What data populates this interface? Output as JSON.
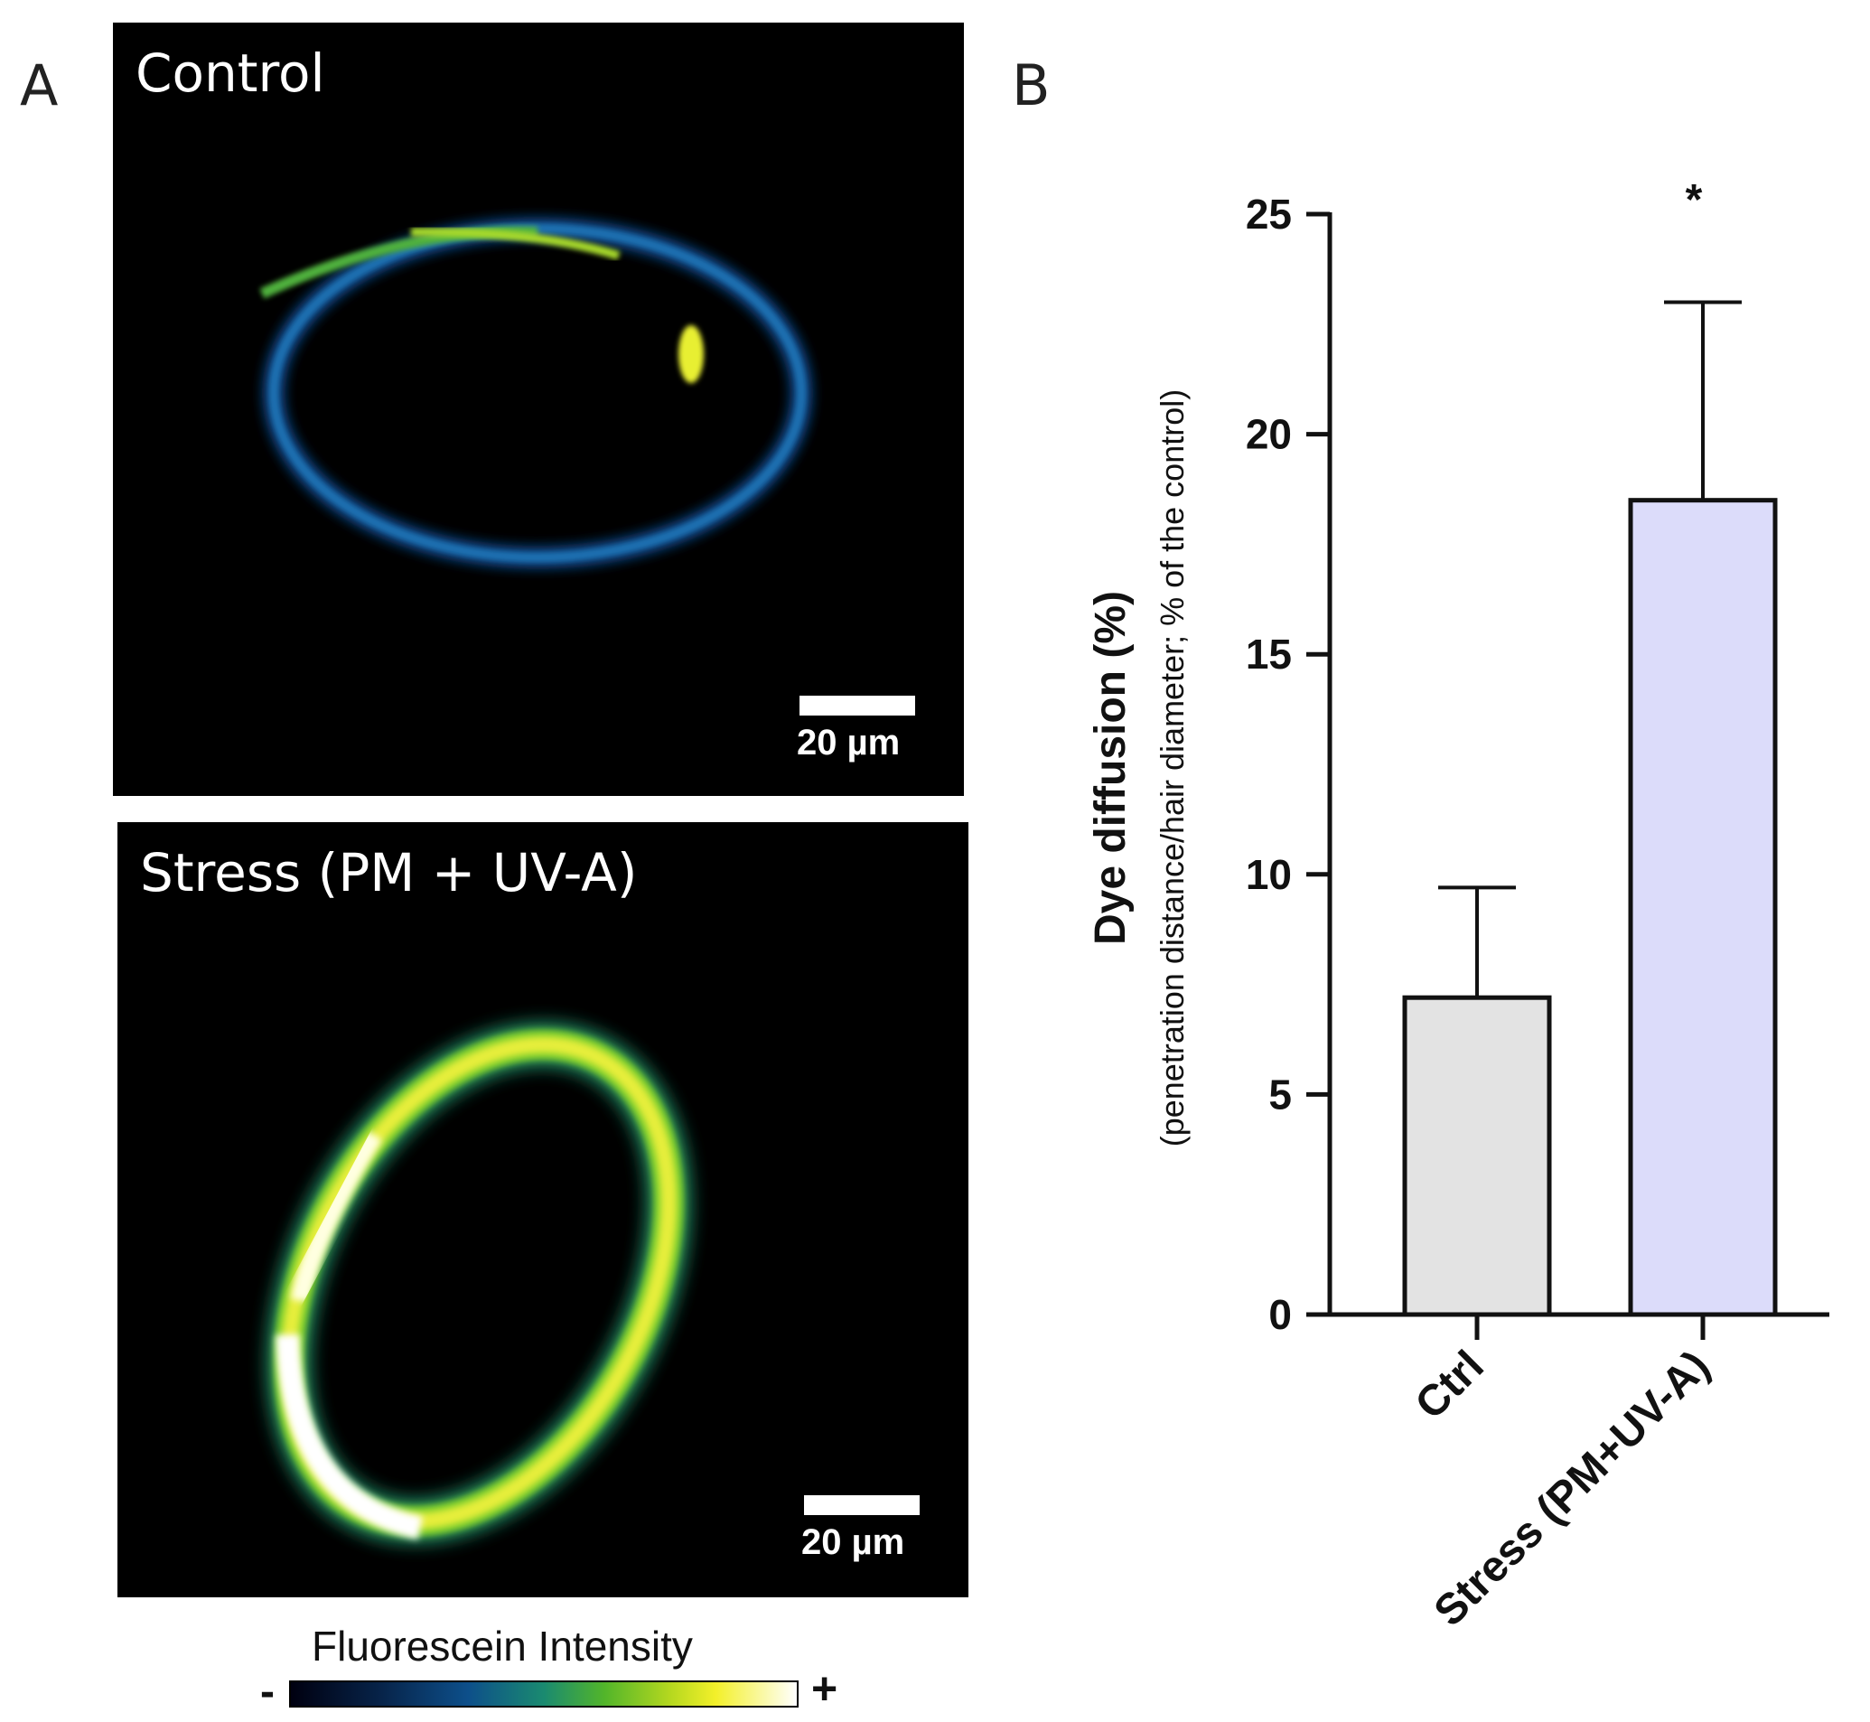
{
  "panel_a": {
    "letter": "A",
    "colorbar": {
      "title": "Fluorescein Intensity",
      "low": "-",
      "high": "+"
    },
    "images": [
      {
        "title": "Control",
        "scale_label": "20 µm"
      },
      {
        "title": "Stress (PM + UV-A)",
        "scale_label": "20 µm"
      }
    ]
  },
  "panel_b": {
    "letter": "B"
  },
  "colors": {
    "ctrl_bar": "#e3e3e3",
    "stress_bar": "#dcdcfa",
    "axis": "#111111"
  },
  "chart_data": {
    "type": "bar",
    "categories": [
      "Ctrl",
      "Stress (PM+UV-A)"
    ],
    "values": [
      7.2,
      18.5
    ],
    "error_bars": [
      2.5,
      4.5
    ],
    "significance": [
      "",
      "*"
    ],
    "ylabel": "Dye diffusion (%)",
    "ylabel_sub": "(penetration distance/hair diameter; % of the control)",
    "ylim": [
      0,
      25
    ],
    "yticks": [
      0,
      5,
      10,
      15,
      20,
      25
    ]
  }
}
